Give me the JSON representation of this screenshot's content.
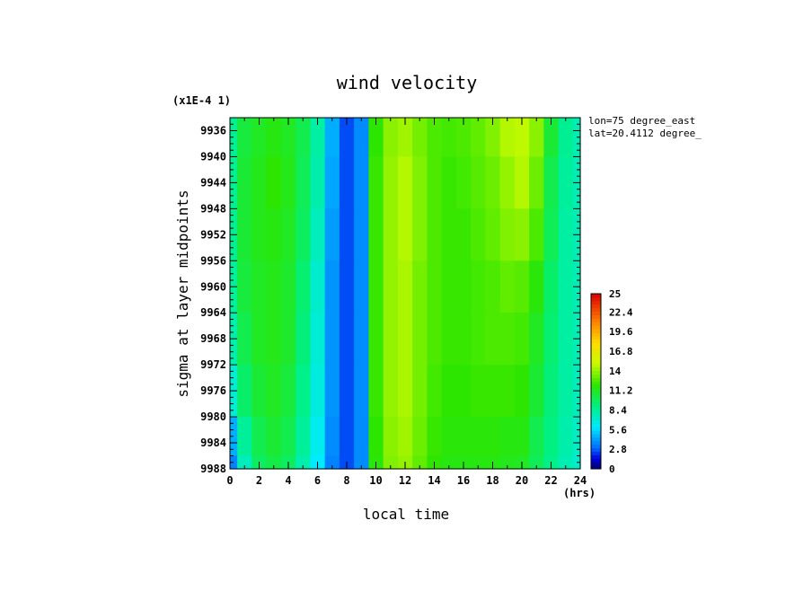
{
  "chart_data": {
    "type": "heatmap",
    "title": "wind velocity",
    "scale_note": "(x1E-4 1)",
    "xlabel": "local time",
    "x_unit": "(hrs)",
    "ylabel": "sigma at layer midpoints",
    "annotations": [
      "lon=75 degree_east",
      "lat=20.4112 degree_"
    ],
    "x_ticks": [
      0,
      2,
      4,
      6,
      8,
      10,
      12,
      14,
      16,
      18,
      20,
      22,
      24
    ],
    "y_ticks": [
      "9936",
      "9940",
      "9944",
      "9948",
      "9952",
      "9956",
      "9960",
      "9964",
      "9968",
      "9972",
      "9976",
      "9980",
      "9984",
      "9988"
    ],
    "xlim": [
      0,
      24
    ],
    "ylim": [
      9934,
      9988
    ],
    "colorbar": {
      "ticks": [
        "25",
        "22.4",
        "19.6",
        "16.8",
        "14",
        "11.2",
        "8.4",
        "5.6",
        "2.8",
        "0"
      ],
      "range": [
        0,
        25
      ]
    },
    "x": [
      0,
      1,
      2,
      3,
      4,
      5,
      6,
      7,
      8,
      9,
      10,
      11,
      12,
      13,
      14,
      15,
      16,
      17,
      18,
      19,
      20,
      21,
      22,
      23,
      24
    ],
    "y": [
      9936,
      9944,
      9952,
      9960,
      9968,
      9976,
      9984,
      9988
    ],
    "values": [
      [
        8.6,
        10.6,
        11.2,
        11.6,
        11.2,
        10.2,
        8.2,
        4.6,
        2.6,
        3.8,
        12.0,
        13.8,
        14.2,
        13.4,
        12.6,
        12.4,
        12.6,
        13.0,
        13.6,
        14.6,
        14.8,
        13.8,
        10.8,
        8.6,
        7.8
      ],
      [
        8.6,
        10.8,
        11.4,
        12.0,
        11.4,
        10.0,
        8.0,
        4.4,
        2.6,
        3.8,
        12.2,
        14.0,
        14.6,
        13.6,
        12.6,
        12.2,
        12.4,
        12.8,
        13.2,
        14.0,
        14.6,
        13.2,
        10.2,
        8.4,
        7.8
      ],
      [
        8.6,
        10.8,
        11.4,
        11.6,
        11.2,
        9.8,
        7.6,
        4.2,
        2.6,
        3.8,
        12.2,
        14.0,
        14.6,
        13.6,
        12.6,
        12.2,
        12.2,
        12.6,
        13.0,
        13.6,
        13.8,
        12.6,
        10.0,
        8.2,
        7.8
      ],
      [
        8.4,
        10.6,
        11.2,
        11.4,
        11.0,
        9.4,
        7.2,
        4.0,
        2.6,
        3.8,
        12.2,
        14.0,
        14.4,
        13.4,
        12.6,
        12.2,
        12.2,
        12.4,
        12.6,
        13.0,
        12.8,
        11.8,
        9.6,
        8.2,
        7.8
      ],
      [
        8.0,
        10.2,
        11.2,
        11.4,
        11.0,
        9.2,
        7.0,
        4.0,
        2.6,
        3.8,
        12.2,
        14.0,
        14.4,
        13.4,
        12.6,
        12.2,
        12.2,
        12.4,
        12.6,
        12.6,
        12.4,
        11.2,
        9.4,
        8.2,
        7.8
      ],
      [
        7.0,
        9.6,
        10.8,
        11.2,
        10.6,
        8.8,
        6.8,
        4.0,
        2.6,
        3.8,
        12.2,
        14.0,
        14.4,
        13.4,
        12.4,
        12.0,
        12.0,
        12.2,
        12.2,
        12.2,
        12.0,
        10.8,
        9.2,
        8.2,
        7.6
      ],
      [
        4.6,
        8.4,
        10.2,
        10.8,
        10.2,
        8.4,
        6.4,
        3.8,
        2.6,
        3.8,
        12.0,
        13.8,
        14.2,
        13.2,
        12.2,
        11.8,
        11.8,
        11.8,
        11.8,
        11.6,
        11.6,
        10.2,
        9.0,
        8.0,
        7.4
      ],
      [
        3.6,
        7.6,
        9.8,
        10.4,
        9.8,
        8.0,
        6.0,
        3.6,
        2.6,
        3.8,
        11.8,
        13.6,
        14.0,
        13.0,
        12.0,
        11.6,
        11.6,
        11.6,
        11.6,
        11.4,
        11.2,
        10.0,
        8.8,
        7.8,
        7.2
      ]
    ]
  }
}
